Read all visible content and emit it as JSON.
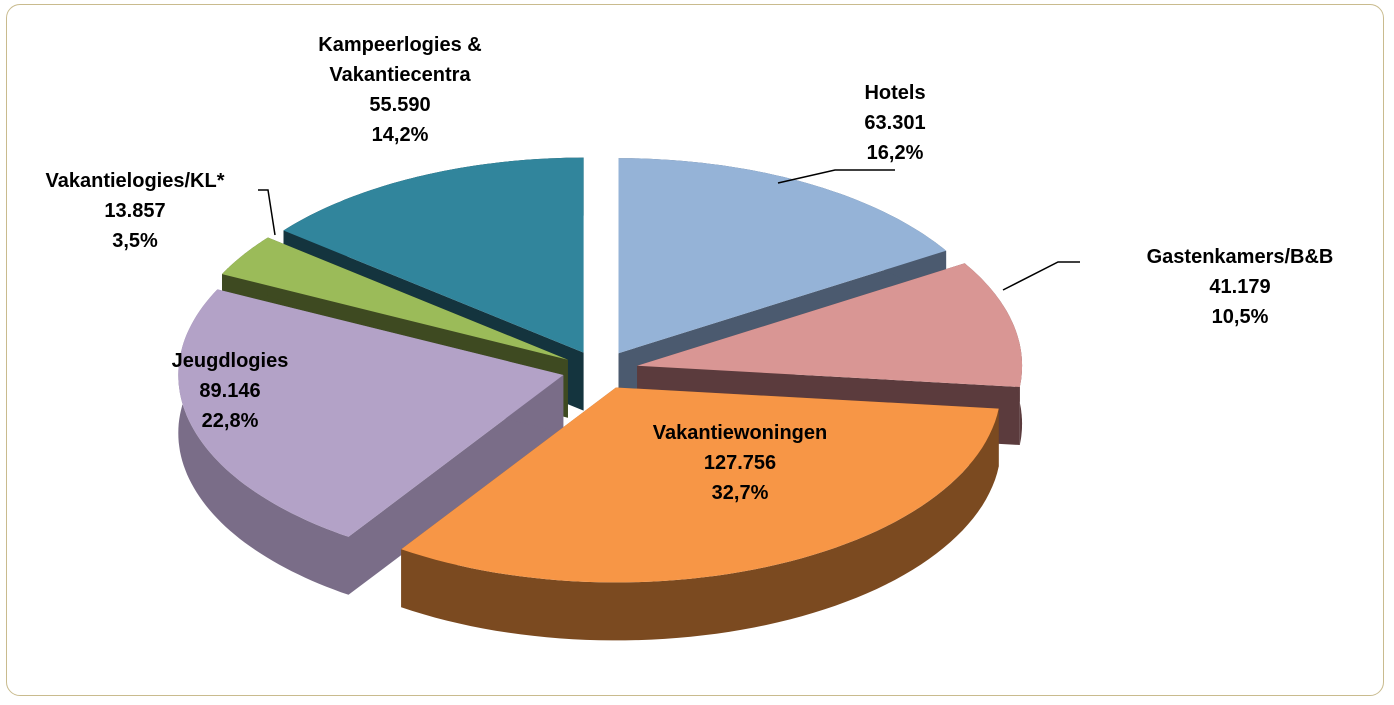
{
  "chart_data": {
    "type": "pie3d",
    "categories": [
      "Hotels",
      "Gastenkamers/B&B",
      "Vakantiewoningen",
      "Jeugdlogies",
      "Vakantielogies/KL*",
      "Kampeerlogies & Vakantiecentra"
    ],
    "values": [
      63301,
      41179,
      127756,
      89146,
      13857,
      55590
    ],
    "value_labels": [
      "63.301",
      "41.179",
      "127.756",
      "89.146",
      "13.857",
      "55.590"
    ],
    "percentages": [
      16.2,
      10.5,
      32.7,
      22.8,
      3.5,
      14.2
    ],
    "percentage_labels": [
      "16,2%",
      "10,5%",
      "32,7%",
      "22,8%",
      "3,5%",
      "14,2%"
    ],
    "colors": [
      "#95b3d7",
      "#d99694",
      "#f79646",
      "#b3a2c7",
      "#9bbb59",
      "#31859c"
    ],
    "side_colors": [
      "#4b5a6f",
      "#5b3b3d",
      "#7b4a20",
      "#7a6d88",
      "#3e4a21",
      "#14343e"
    ]
  }
}
